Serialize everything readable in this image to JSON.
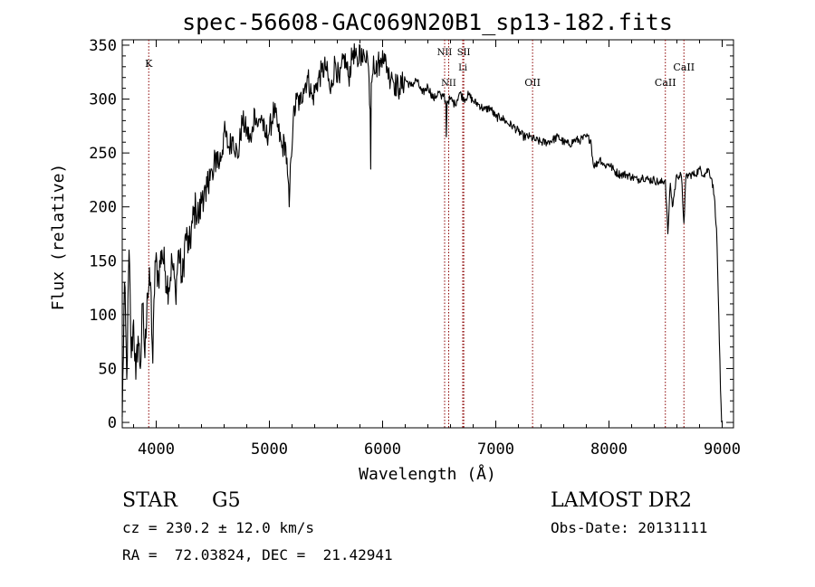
{
  "chart_data": {
    "type": "line",
    "title": "spec-56608-GAC069N20B1_sp13-182.fits",
    "xlabel": "Wavelength (Å)",
    "ylabel": "Flux (relative)",
    "xlim": [
      3700,
      9100
    ],
    "ylim": [
      -5,
      355
    ],
    "xticks": [
      4000,
      5000,
      6000,
      7000,
      8000,
      9000
    ],
    "yticks": [
      0,
      50,
      100,
      150,
      200,
      250,
      300,
      350
    ],
    "series": [
      {
        "name": "flux",
        "x": [
          3700,
          3720,
          3740,
          3760,
          3780,
          3800,
          3820,
          3840,
          3860,
          3880,
          3900,
          3920,
          3950,
          3970,
          3990,
          4020,
          4050,
          4080,
          4110,
          4140,
          4170,
          4200,
          4230,
          4260,
          4290,
          4320,
          4350,
          4380,
          4410,
          4440,
          4470,
          4500,
          4530,
          4560,
          4600,
          4640,
          4680,
          4720,
          4760,
          4800,
          4840,
          4870,
          4900,
          4930,
          4960,
          5000,
          5040,
          5080,
          5110,
          5140,
          5160,
          5175,
          5190,
          5210,
          5240,
          5270,
          5300,
          5340,
          5380,
          5420,
          5460,
          5500,
          5540,
          5580,
          5620,
          5660,
          5700,
          5740,
          5780,
          5800,
          5820,
          5840,
          5860,
          5880,
          5890,
          5895,
          5900,
          5920,
          5940,
          5960,
          5980,
          6000,
          6020,
          6040,
          6060,
          6080,
          6100,
          6150,
          6200,
          6250,
          6300,
          6350,
          6400,
          6450,
          6500,
          6520,
          6540,
          6560,
          6563,
          6570,
          6600,
          6640,
          6680,
          6720,
          6760,
          6800,
          6850,
          6900,
          6950,
          7000,
          7050,
          7100,
          7150,
          7200,
          7250,
          7300,
          7350,
          7400,
          7450,
          7500,
          7550,
          7600,
          7650,
          7700,
          7750,
          7800,
          7840,
          7860,
          7880,
          7920,
          7960,
          8000,
          8050,
          8100,
          8150,
          8200,
          8250,
          8300,
          8350,
          8400,
          8450,
          8498,
          8520,
          8542,
          8560,
          8600,
          8640,
          8662,
          8680,
          8720,
          8760,
          8800,
          8840,
          8880,
          8910,
          8930,
          8950,
          8970,
          8985,
          8995
        ],
        "values": [
          5,
          130,
          40,
          160,
          60,
          95,
          40,
          80,
          50,
          110,
          60,
          120,
          130,
          55,
          150,
          135,
          160,
          140,
          125,
          150,
          120,
          160,
          130,
          175,
          160,
          185,
          200,
          190,
          215,
          205,
          235,
          225,
          250,
          240,
          270,
          255,
          265,
          245,
          280,
          270,
          260,
          290,
          275,
          285,
          265,
          270,
          290,
          270,
          255,
          260,
          230,
          200,
          245,
          280,
          300,
          295,
          310,
          320,
          300,
          315,
          325,
          330,
          305,
          335,
          315,
          340,
          320,
          345,
          330,
          350,
          335,
          340,
          345,
          320,
          290,
          235,
          315,
          340,
          325,
          335,
          330,
          345,
          335,
          330,
          320,
          325,
          315,
          310,
          318,
          312,
          318,
          305,
          312,
          300,
          307,
          300,
          305,
          295,
          265,
          298,
          300,
          295,
          306,
          300,
          304,
          298,
          295,
          290,
          292,
          283,
          283,
          278,
          275,
          270,
          265,
          265,
          262,
          260,
          260,
          262,
          265,
          260,
          258,
          262,
          262,
          265,
          262,
          240,
          238,
          245,
          238,
          240,
          233,
          230,
          230,
          228,
          225,
          228,
          225,
          225,
          222,
          225,
          175,
          222,
          200,
          230,
          228,
          185,
          228,
          230,
          230,
          235,
          230,
          235,
          225,
          210,
          180,
          100,
          30,
          0
        ]
      }
    ],
    "lines": [
      {
        "label": "K",
        "wavelength": 3934
      },
      {
        "label": "NII",
        "wavelength": 6548
      },
      {
        "label": "NII",
        "wavelength": 6584
      },
      {
        "label": "SII",
        "wavelength": 6717
      },
      {
        "label": "Li",
        "wavelength": 6708
      },
      {
        "label": "OII",
        "wavelength": 7325
      },
      {
        "label": "CaII",
        "wavelength": 8498
      },
      {
        "label": "CaII",
        "wavelength": 8662
      }
    ]
  },
  "info": {
    "class": "STAR",
    "subclass": "G5",
    "survey": "LAMOST DR2",
    "cz_label": "cz = ",
    "cz_value": "230.2",
    "cz_pm": "±",
    "cz_err": "12.0",
    "cz_unit": "km/s",
    "obs_date_label": "Obs-Date:",
    "obs_date": "20131111",
    "ra_label": "RA =",
    "ra": "72.03824",
    "dec_label": "DEC =",
    "dec": "21.42941"
  }
}
